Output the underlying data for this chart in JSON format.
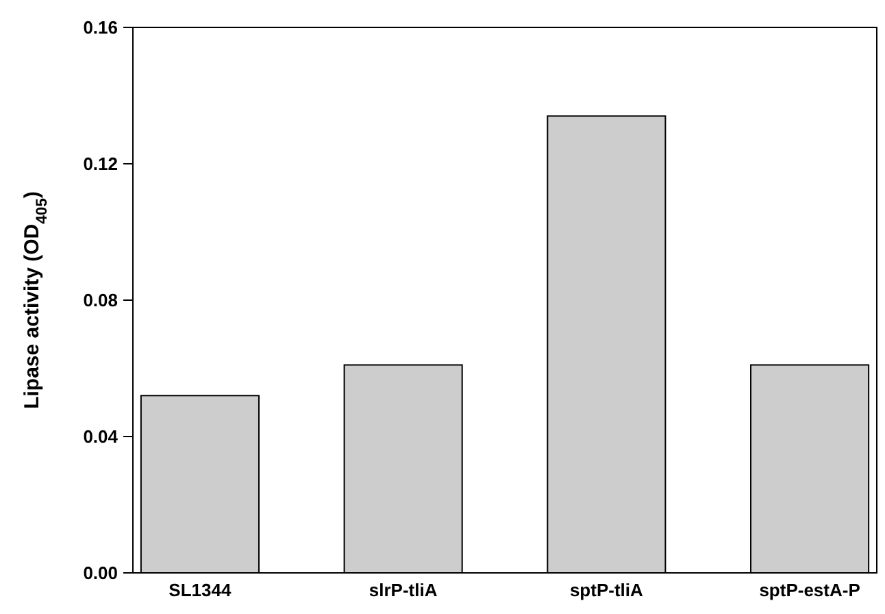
{
  "chart_data": {
    "type": "bar",
    "ylabel": "Lipase activity (OD$_{405}$)",
    "categories": [
      "SL1344",
      "slrP-tliA",
      "sptP-tliA",
      "sptP-estA-P"
    ],
    "values": [
      0.052,
      0.061,
      0.134,
      0.061
    ],
    "color": "#cdcdcd",
    "ylim": [
      0,
      0.16
    ],
    "yticks": [
      {
        "value": 0,
        "label": "0.00"
      },
      {
        "value": 0.04,
        "label": "0.04"
      },
      {
        "value": 0.08,
        "label": "0.08"
      },
      {
        "value": 0.12,
        "label": "0.12"
      },
      {
        "value": 0.16,
        "label": "0.16"
      }
    ]
  }
}
